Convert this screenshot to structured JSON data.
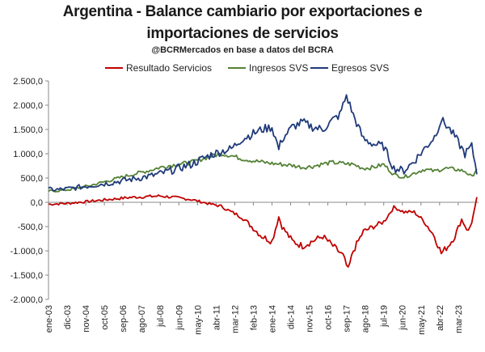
{
  "chart_data": {
    "type": "line",
    "title": "Argentina - Balance cambiario por exportaciones e importaciones de servicios",
    "title_line1": "Argentina - Balance cambiario por exportaciones e",
    "title_line2": "importaciones de servicios",
    "subtitle": "@BCRMercados en base a datos del BCRA",
    "xlabel": "",
    "ylabel": "",
    "ylim": [
      -2000,
      2500
    ],
    "yticks": [
      "2.500,0",
      "2.000,0",
      "1.500,0",
      "1.000,0",
      "500,0",
      "0,0",
      "-500,0",
      "-1.000,0",
      "-1.500,0",
      "-2.000,0"
    ],
    "ytick_values": [
      2500,
      2000,
      1500,
      1000,
      500,
      0,
      -500,
      -1000,
      -1500,
      -2000
    ],
    "xticks": [
      "ene-03",
      "dic-03",
      "nov-04",
      "oct-05",
      "sep-06",
      "ago-07",
      "jul-08",
      "jun-09",
      "may-10",
      "abr-11",
      "mar-12",
      "feb-13",
      "ene-14",
      "dic-14",
      "nov-15",
      "oct-16",
      "sep-17",
      "ago-18",
      "jul-19",
      "jun-20",
      "may-21",
      "abr-22",
      "mar-23"
    ],
    "xtick_months": [
      0,
      11,
      22,
      33,
      44,
      55,
      66,
      77,
      88,
      99,
      110,
      121,
      132,
      143,
      154,
      165,
      176,
      187,
      198,
      209,
      220,
      231,
      242
    ],
    "x_start": "2003-01",
    "x_end": "2024-01",
    "legend_position": "top",
    "grid": false,
    "colors": {
      "resultado": "#c00000",
      "ingresos": "#548235",
      "egresos": "#1f3a7a"
    },
    "series": [
      {
        "name": "Resultado Servicios",
        "color": "#c00000",
        "points": [
          [
            0,
            -40
          ],
          [
            6,
            -30
          ],
          [
            12,
            -20
          ],
          [
            24,
            20
          ],
          [
            36,
            60
          ],
          [
            48,
            100
          ],
          [
            60,
            120
          ],
          [
            66,
            130
          ],
          [
            72,
            110
          ],
          [
            84,
            60
          ],
          [
            96,
            -40
          ],
          [
            102,
            -80
          ],
          [
            108,
            -200
          ],
          [
            114,
            -300
          ],
          [
            120,
            -500
          ],
          [
            126,
            -700
          ],
          [
            132,
            -800
          ],
          [
            136,
            -300
          ],
          [
            138,
            -500
          ],
          [
            144,
            -800
          ],
          [
            150,
            -900
          ],
          [
            156,
            -800
          ],
          [
            162,
            -700
          ],
          [
            168,
            -900
          ],
          [
            174,
            -1100
          ],
          [
            177,
            -1400
          ],
          [
            180,
            -1000
          ],
          [
            186,
            -600
          ],
          [
            192,
            -500
          ],
          [
            198,
            -400
          ],
          [
            204,
            -100
          ],
          [
            210,
            -200
          ],
          [
            216,
            -200
          ],
          [
            222,
            -400
          ],
          [
            228,
            -700
          ],
          [
            232,
            -1050
          ],
          [
            236,
            -900
          ],
          [
            240,
            -700
          ],
          [
            244,
            -350
          ],
          [
            248,
            -600
          ],
          [
            250,
            -400
          ],
          [
            252,
            -100
          ],
          [
            253,
            80
          ]
        ]
      },
      {
        "name": "Ingresos SVS",
        "color": "#548235",
        "points": [
          [
            0,
            230
          ],
          [
            6,
            240
          ],
          [
            12,
            260
          ],
          [
            24,
            340
          ],
          [
            36,
            450
          ],
          [
            48,
            560
          ],
          [
            60,
            660
          ],
          [
            66,
            720
          ],
          [
            72,
            760
          ],
          [
            84,
            820
          ],
          [
            96,
            950
          ],
          [
            102,
            1000
          ],
          [
            108,
            960
          ],
          [
            114,
            900
          ],
          [
            120,
            860
          ],
          [
            126,
            830
          ],
          [
            132,
            800
          ],
          [
            138,
            780
          ],
          [
            144,
            760
          ],
          [
            150,
            720
          ],
          [
            156,
            740
          ],
          [
            162,
            790
          ],
          [
            168,
            820
          ],
          [
            174,
            800
          ],
          [
            180,
            780
          ],
          [
            186,
            700
          ],
          [
            192,
            720
          ],
          [
            198,
            780
          ],
          [
            204,
            570
          ],
          [
            210,
            520
          ],
          [
            216,
            600
          ],
          [
            222,
            680
          ],
          [
            228,
            640
          ],
          [
            234,
            700
          ],
          [
            240,
            680
          ],
          [
            246,
            640
          ],
          [
            250,
            520
          ],
          [
            253,
            700
          ]
        ]
      },
      {
        "name": "Egresos SVS",
        "color": "#1f3a7a",
        "points": [
          [
            0,
            260
          ],
          [
            6,
            260
          ],
          [
            12,
            280
          ],
          [
            24,
            340
          ],
          [
            36,
            400
          ],
          [
            48,
            470
          ],
          [
            60,
            540
          ],
          [
            66,
            590
          ],
          [
            72,
            650
          ],
          [
            84,
            780
          ],
          [
            96,
            980
          ],
          [
            102,
            1050
          ],
          [
            108,
            1100
          ],
          [
            114,
            1300
          ],
          [
            120,
            1400
          ],
          [
            126,
            1500
          ],
          [
            132,
            1550
          ],
          [
            136,
            1100
          ],
          [
            138,
            1300
          ],
          [
            144,
            1550
          ],
          [
            150,
            1650
          ],
          [
            156,
            1550
          ],
          [
            162,
            1500
          ],
          [
            168,
            1700
          ],
          [
            172,
            1800
          ],
          [
            176,
            2200
          ],
          [
            180,
            1800
          ],
          [
            186,
            1300
          ],
          [
            192,
            1200
          ],
          [
            198,
            1150
          ],
          [
            204,
            700
          ],
          [
            210,
            650
          ],
          [
            216,
            850
          ],
          [
            222,
            1100
          ],
          [
            228,
            1350
          ],
          [
            232,
            1700
          ],
          [
            236,
            1550
          ],
          [
            240,
            1350
          ],
          [
            246,
            1000
          ],
          [
            250,
            1150
          ],
          [
            252,
            800
          ],
          [
            253,
            620
          ]
        ]
      }
    ]
  }
}
